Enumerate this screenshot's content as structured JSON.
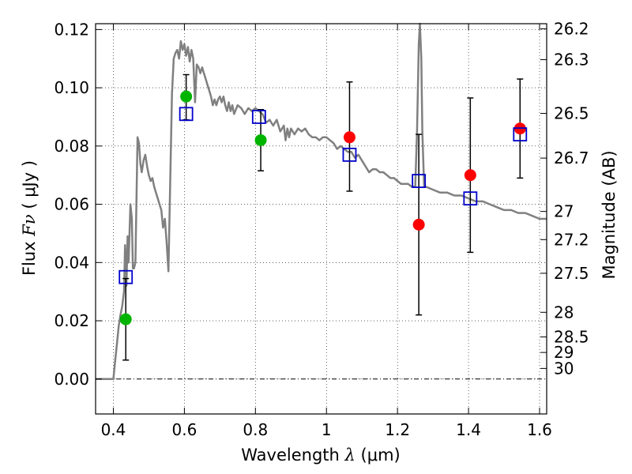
{
  "chart_data": {
    "type": "scatter",
    "xlabel_prefix": "Wavelength",
    "xlabel_symbol": "λ",
    "xlabel_unit": "(μm)",
    "ylabel_prefix": "Flux",
    "ylabel_symbol": "Fν",
    "ylabel_unit": "( μJy )",
    "y2label": "Magnitude (AB)",
    "xlim": [
      0.35,
      1.62
    ],
    "ylim": [
      -0.012,
      0.122
    ],
    "x_ticks": [
      0.4,
      0.6,
      0.8,
      1.0,
      1.2,
      1.4,
      1.6
    ],
    "x_tick_labels": [
      "0.4",
      "0.6",
      "0.8",
      "1",
      "1.2",
      "1.4",
      "1.6"
    ],
    "y_ticks": [
      0.0,
      0.02,
      0.04,
      0.06,
      0.08,
      0.1,
      0.12
    ],
    "y_tick_labels": [
      "0.00",
      "0.02",
      "0.04",
      "0.06",
      "0.08",
      "0.10",
      "0.12"
    ],
    "mag_ticks": [
      "26.2",
      "26.3",
      "26.5",
      "26.7",
      "27",
      "27.2",
      "27.5",
      "28",
      "28.5",
      "29",
      "30"
    ],
    "grid": true,
    "colors": {
      "sed": "#808080",
      "green_points": "#00b400",
      "red_points": "#ff0000",
      "model_squares": "#0000cc",
      "errorbars": "#000000"
    },
    "sed_model": [
      [
        0.35,
        0.0
      ],
      [
        0.4,
        0.0
      ],
      [
        0.405,
        0.006
      ],
      [
        0.41,
        0.012
      ],
      [
        0.415,
        0.018
      ],
      [
        0.42,
        0.022
      ],
      [
        0.425,
        0.025
      ],
      [
        0.43,
        0.03
      ],
      [
        0.433,
        0.046
      ],
      [
        0.437,
        0.032
      ],
      [
        0.44,
        0.049
      ],
      [
        0.443,
        0.04
      ],
      [
        0.448,
        0.06
      ],
      [
        0.452,
        0.055
      ],
      [
        0.455,
        0.038
      ],
      [
        0.458,
        0.038
      ],
      [
        0.462,
        0.04
      ],
      [
        0.468,
        0.083
      ],
      [
        0.472,
        0.081
      ],
      [
        0.476,
        0.074
      ],
      [
        0.48,
        0.071
      ],
      [
        0.485,
        0.075
      ],
      [
        0.49,
        0.077
      ],
      [
        0.495,
        0.073
      ],
      [
        0.5,
        0.07
      ],
      [
        0.505,
        0.068
      ],
      [
        0.51,
        0.069
      ],
      [
        0.515,
        0.066
      ],
      [
        0.52,
        0.064
      ],
      [
        0.525,
        0.062
      ],
      [
        0.53,
        0.06
      ],
      [
        0.535,
        0.058
      ],
      [
        0.54,
        0.052
      ],
      [
        0.545,
        0.055
      ],
      [
        0.55,
        0.047
      ],
      [
        0.555,
        0.037
      ],
      [
        0.565,
        0.098
      ],
      [
        0.57,
        0.11
      ],
      [
        0.575,
        0.112
      ],
      [
        0.58,
        0.113
      ],
      [
        0.585,
        0.11
      ],
      [
        0.59,
        0.116
      ],
      [
        0.595,
        0.113
      ],
      [
        0.6,
        0.115
      ],
      [
        0.605,
        0.111
      ],
      [
        0.61,
        0.114
      ],
      [
        0.615,
        0.109
      ],
      [
        0.62,
        0.113
      ],
      [
        0.625,
        0.11
      ],
      [
        0.63,
        0.095
      ],
      [
        0.635,
        0.108
      ],
      [
        0.64,
        0.107
      ],
      [
        0.645,
        0.105
      ],
      [
        0.65,
        0.107
      ],
      [
        0.655,
        0.105
      ],
      [
        0.66,
        0.103
      ],
      [
        0.665,
        0.101
      ],
      [
        0.67,
        0.099
      ],
      [
        0.675,
        0.097
      ],
      [
        0.68,
        0.094
      ],
      [
        0.685,
        0.096
      ],
      [
        0.69,
        0.094
      ],
      [
        0.695,
        0.096
      ],
      [
        0.7,
        0.097
      ],
      [
        0.705,
        0.095
      ],
      [
        0.71,
        0.097
      ],
      [
        0.715,
        0.094
      ],
      [
        0.72,
        0.092
      ],
      [
        0.725,
        0.095
      ],
      [
        0.73,
        0.092
      ],
      [
        0.735,
        0.094
      ],
      [
        0.74,
        0.091
      ],
      [
        0.75,
        0.094
      ],
      [
        0.76,
        0.093
      ],
      [
        0.77,
        0.091
      ],
      [
        0.78,
        0.093
      ],
      [
        0.79,
        0.092
      ],
      [
        0.8,
        0.093
      ],
      [
        0.81,
        0.092
      ],
      [
        0.82,
        0.091
      ],
      [
        0.83,
        0.088
      ],
      [
        0.84,
        0.089
      ],
      [
        0.85,
        0.087
      ],
      [
        0.86,
        0.089
      ],
      [
        0.87,
        0.085
      ],
      [
        0.88,
        0.087
      ],
      [
        0.885,
        0.082
      ],
      [
        0.89,
        0.086
      ],
      [
        0.895,
        0.083
      ],
      [
        0.9,
        0.086
      ],
      [
        0.91,
        0.084
      ],
      [
        0.92,
        0.086
      ],
      [
        0.93,
        0.085
      ],
      [
        0.94,
        0.086
      ],
      [
        0.95,
        0.084
      ],
      [
        0.96,
        0.083
      ],
      [
        0.97,
        0.083
      ],
      [
        0.98,
        0.082
      ],
      [
        0.99,
        0.083
      ],
      [
        1.0,
        0.083
      ],
      [
        1.01,
        0.082
      ],
      [
        1.02,
        0.081
      ],
      [
        1.03,
        0.079
      ],
      [
        1.04,
        0.08
      ],
      [
        1.05,
        0.079
      ],
      [
        1.06,
        0.078
      ],
      [
        1.07,
        0.078
      ],
      [
        1.08,
        0.076
      ],
      [
        1.09,
        0.077
      ],
      [
        1.1,
        0.075
      ],
      [
        1.11,
        0.073
      ],
      [
        1.12,
        0.071
      ],
      [
        1.13,
        0.072
      ],
      [
        1.14,
        0.072
      ],
      [
        1.15,
        0.071
      ],
      [
        1.16,
        0.071
      ],
      [
        1.17,
        0.07
      ],
      [
        1.18,
        0.069
      ],
      [
        1.19,
        0.069
      ],
      [
        1.2,
        0.068
      ],
      [
        1.21,
        0.067
      ],
      [
        1.22,
        0.067
      ],
      [
        1.23,
        0.067
      ],
      [
        1.24,
        0.066
      ],
      [
        1.25,
        0.066
      ],
      [
        1.255,
        0.085
      ],
      [
        1.26,
        0.115
      ],
      [
        1.263,
        0.122
      ],
      [
        1.267,
        0.11
      ],
      [
        1.27,
        0.085
      ],
      [
        1.275,
        0.066
      ],
      [
        1.28,
        0.066
      ],
      [
        1.3,
        0.065
      ],
      [
        1.32,
        0.064
      ],
      [
        1.34,
        0.064
      ],
      [
        1.36,
        0.063
      ],
      [
        1.38,
        0.063
      ],
      [
        1.4,
        0.062
      ],
      [
        1.42,
        0.061
      ],
      [
        1.44,
        0.061
      ],
      [
        1.46,
        0.06
      ],
      [
        1.48,
        0.059
      ],
      [
        1.5,
        0.058
      ],
      [
        1.52,
        0.058
      ],
      [
        1.54,
        0.057
      ],
      [
        1.56,
        0.057
      ],
      [
        1.58,
        0.056
      ],
      [
        1.6,
        0.055
      ],
      [
        1.62,
        0.055
      ]
    ],
    "model_squares": [
      {
        "x": 0.435,
        "y": 0.035
      },
      {
        "x": 0.605,
        "y": 0.091
      },
      {
        "x": 0.81,
        "y": 0.09
      },
      {
        "x": 1.065,
        "y": 0.077
      },
      {
        "x": 1.26,
        "y": 0.068
      },
      {
        "x": 1.405,
        "y": 0.062
      },
      {
        "x": 1.545,
        "y": 0.084
      }
    ],
    "observed_points": [
      {
        "x": 0.435,
        "y": 0.0205,
        "yerr_low": 0.0065,
        "yerr_high": 0.0345,
        "color": "green"
      },
      {
        "x": 0.605,
        "y": 0.097,
        "yerr_low": 0.089,
        "yerr_high": 0.1045,
        "color": "green"
      },
      {
        "x": 0.815,
        "y": 0.082,
        "yerr_low": 0.0715,
        "yerr_high": 0.0925,
        "color": "green"
      },
      {
        "x": 1.065,
        "y": 0.083,
        "yerr_low": 0.0645,
        "yerr_high": 0.102,
        "color": "red"
      },
      {
        "x": 1.26,
        "y": 0.053,
        "yerr_low": 0.022,
        "yerr_high": 0.084,
        "color": "red"
      },
      {
        "x": 1.405,
        "y": 0.07,
        "yerr_low": 0.0435,
        "yerr_high": 0.0965,
        "color": "red"
      },
      {
        "x": 1.545,
        "y": 0.086,
        "yerr_low": 0.069,
        "yerr_high": 0.103,
        "color": "red"
      }
    ]
  }
}
